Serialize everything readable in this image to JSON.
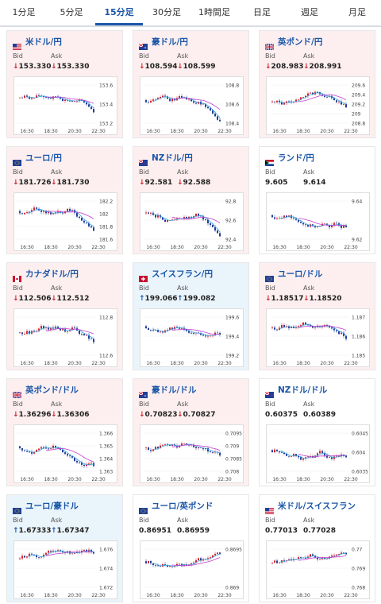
{
  "tabs": [
    "1分足",
    "5分足",
    "15分足",
    "30分足",
    "1時間足",
    "日足",
    "週足",
    "月足"
  ],
  "active_tab": 2,
  "labels": {
    "bid": "Bid",
    "ask": "Ask"
  },
  "arrows": {
    "down": "↓",
    "up": "↑"
  },
  "colors": {
    "accent": "#1a56a8",
    "down": "#d2232a",
    "up_candle": "#d2232a",
    "down_candle": "#1f3f99",
    "ma_short": "#3aa3e0",
    "ma_long": "#c13fd0"
  },
  "cards": [
    {
      "name": "米ドル/円",
      "flag": "us",
      "state": "down",
      "bid": "153.330",
      "ask": "153.330",
      "bid_dir": "down",
      "ask_dir": "down",
      "ticks": [
        "153.6",
        "153.4",
        "153.2"
      ],
      "times": [
        "16:30",
        "18:30",
        "20:30",
        "22:30"
      ]
    },
    {
      "name": "豪ドル/円",
      "flag": "au",
      "state": "down",
      "bid": "108.594",
      "ask": "108.599",
      "bid_dir": "down",
      "ask_dir": "down",
      "ticks": [
        "108.8",
        "108.6",
        "108.4"
      ],
      "times": [
        "16:30",
        "18:30",
        "20:30",
        "22:30"
      ]
    },
    {
      "name": "英ポンド/円",
      "flag": "gb",
      "state": "down",
      "bid": "208.983",
      "ask": "208.991",
      "bid_dir": "down",
      "ask_dir": "down",
      "ticks": [
        "209.6",
        "209.4",
        "209.2",
        "209",
        "208.8"
      ],
      "times": [
        "16:30",
        "18:30",
        "20:30",
        "22:30"
      ]
    },
    {
      "name": "ユーロ/円",
      "flag": "eu",
      "state": "down",
      "bid": "181.726",
      "ask": "181.730",
      "bid_dir": "down",
      "ask_dir": "down",
      "ticks": [
        "182.2",
        "182",
        "181.8",
        "181.6"
      ],
      "times": [
        "16:30",
        "18:30",
        "20:30",
        "22:30"
      ]
    },
    {
      "name": "NZドル/円",
      "flag": "nz",
      "state": "down",
      "bid": "92.581",
      "ask": "92.588",
      "bid_dir": "down",
      "ask_dir": "down",
      "ticks": [
        "92.8",
        "92.6",
        "92.4"
      ],
      "times": [
        "16:30",
        "18:30",
        "20:30",
        "22:30"
      ]
    },
    {
      "name": "ランド/円",
      "flag": "za",
      "state": "neutral",
      "bid": "9.605",
      "ask": "9.614",
      "bid_dir": "none",
      "ask_dir": "none",
      "ticks": [
        "9.64",
        "9.62"
      ],
      "times": [
        "16:30",
        "18:30",
        "20:30",
        "22:30"
      ]
    },
    {
      "name": "カナダドル/円",
      "flag": "ca",
      "state": "down",
      "bid": "112.506",
      "ask": "112.512",
      "bid_dir": "down",
      "ask_dir": "down",
      "ticks": [
        "112.8",
        "112.6"
      ],
      "times": [
        "16:30",
        "18:30",
        "20:30",
        "22:30"
      ]
    },
    {
      "name": "スイスフラン/円",
      "flag": "ch",
      "state": "up",
      "bid": "199.066",
      "ask": "199.082",
      "bid_dir": "up",
      "ask_dir": "up",
      "ticks": [
        "199.6",
        "199.4",
        "199.2"
      ],
      "times": [
        "16:30",
        "18:30",
        "20:30",
        "22:30"
      ]
    },
    {
      "name": "ユーロ/ドル",
      "flag": "eu",
      "state": "down",
      "bid": "1.18517",
      "ask": "1.18520",
      "bid_dir": "down",
      "ask_dir": "down",
      "ticks": [
        "1.187",
        "1.186",
        "1.185"
      ],
      "times": [
        "16:30",
        "18:30",
        "20:30",
        "22:30"
      ]
    },
    {
      "name": "英ポンド/ドル",
      "flag": "gb",
      "state": "down",
      "bid": "1.36296",
      "ask": "1.36306",
      "bid_dir": "down",
      "ask_dir": "down",
      "ticks": [
        "1.366",
        "1.365",
        "1.364",
        "1.363"
      ],
      "times": [
        "16:30",
        "18:30",
        "20:30",
        "22:30"
      ]
    },
    {
      "name": "豪ドル/ドル",
      "flag": "au",
      "state": "down",
      "bid": "0.70823",
      "ask": "0.70827",
      "bid_dir": "down",
      "ask_dir": "down",
      "ticks": [
        "0.7095",
        "0.709",
        "0.7085",
        "0.708"
      ],
      "times": [
        "16:30",
        "18:30",
        "20:30",
        "22:30"
      ]
    },
    {
      "name": "NZドル/ドル",
      "flag": "nz",
      "state": "neutral",
      "bid": "0.60375",
      "ask": "0.60389",
      "bid_dir": "none",
      "ask_dir": "none",
      "ticks": [
        "0.6045",
        "0.604",
        "0.6035"
      ],
      "times": [
        "16:30",
        "18:30",
        "20:30",
        "22:30"
      ]
    },
    {
      "name": "ユーロ/豪ドル",
      "flag": "eu",
      "state": "up",
      "bid": "1.67333",
      "ask": "1.67347",
      "bid_dir": "up",
      "ask_dir": "up",
      "ticks": [
        "1.676",
        "1.674",
        "1.672"
      ],
      "times": [
        "16:30",
        "18:30",
        "20:30",
        "22:30"
      ]
    },
    {
      "name": "ユーロ/英ポンド",
      "flag": "eu",
      "state": "neutral",
      "bid": "0.86951",
      "ask": "0.86959",
      "bid_dir": "none",
      "ask_dir": "none",
      "ticks": [
        "0.8695",
        "0.869"
      ],
      "times": [
        "16:30",
        "18:30",
        "20:30",
        "22:30"
      ]
    },
    {
      "name": "米ドル/スイスフラン",
      "flag": "us",
      "state": "neutral",
      "bid": "0.77013",
      "ask": "0.77028",
      "bid_dir": "none",
      "ask_dir": "none",
      "ticks": [
        "0.77",
        "0.769",
        "0.768"
      ],
      "times": [
        "16:30",
        "18:30",
        "20:30",
        "22:30"
      ]
    }
  ]
}
